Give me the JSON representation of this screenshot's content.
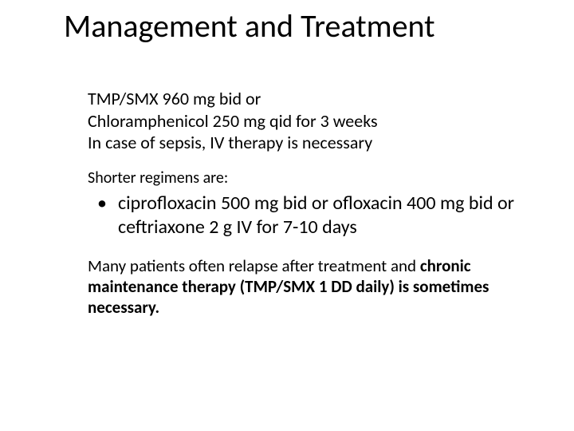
{
  "slide": {
    "title": "Management and Treatment",
    "intro_lines": [
      "TMP/SMX 960 mg bid or",
      "Chloramphenicol 250 mg qid for 3 weeks",
      "In case of sepsis, IV therapy is necessary"
    ],
    "subhead": "Shorter regimens are:",
    "bullet": "ciprofloxacin 500 mg bid or ofloxacin 400 mg bid or ceftriaxone 2 g IV for 7-10 days",
    "closing_plain_1": "Many patients often relapse after treatment and ",
    "closing_bold": "chronic maintenance therapy (TMP/SMX 1 DD daily) is sometimes necessary.",
    "colors": {
      "background": "#ffffff",
      "text": "#000000"
    },
    "fonts": {
      "title_size_pt": 40,
      "body_size_pt": 22,
      "bullet_size_pt": 24,
      "subhead_size_pt": 20
    }
  }
}
